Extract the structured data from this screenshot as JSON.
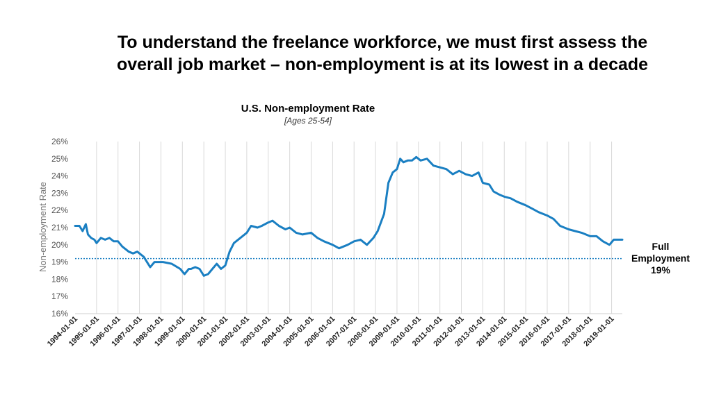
{
  "headline": {
    "line1": "To understand the freelance workforce, we must first assess the",
    "line2": "overall job market – non-employment is at its lowest in a decade"
  },
  "chart_data": {
    "type": "line",
    "title": "U.S. Non-employment Rate",
    "subtitle": "[Ages 25-54]",
    "xlabel": "",
    "ylabel": "Non-employment Rate",
    "ylim": [
      16,
      26
    ],
    "y_ticks": [
      "16%",
      "17%",
      "18%",
      "19%",
      "20%",
      "21%",
      "22%",
      "23%",
      "24%",
      "25%",
      "26%"
    ],
    "x_range": [
      1994.0,
      2019.5
    ],
    "x_ticks": [
      "1994-01-01",
      "1995-01-01",
      "1996-01-01",
      "1997-01-01",
      "1998-01-01",
      "1999-01-01",
      "2000-01-01",
      "2001-01-01",
      "2002-01-01",
      "2003-01-01",
      "2004-01-01",
      "2005-01-01",
      "2006-01-01",
      "2007-01-01",
      "2008-01-01",
      "2009-01-01",
      "2010-01-01",
      "2011-01-01",
      "2012-01-01",
      "2013-01-01",
      "2014-01-01",
      "2015-01-01",
      "2016-01-01",
      "2017-01-01",
      "2018-01-01",
      "2019-01-01"
    ],
    "grid": "vertical",
    "line_color": "#1a7fc2",
    "series": [
      {
        "x": [
          1994.0,
          1994.2,
          1994.35,
          1994.5,
          1994.6,
          1994.75,
          1994.9,
          1995.0,
          1995.2,
          1995.4,
          1995.6,
          1995.8,
          1996.0,
          1996.2,
          1996.5,
          1996.7,
          1996.9,
          1997.2,
          1997.5,
          1997.7,
          1997.9,
          1998.1,
          1998.5,
          1998.9,
          1999.1,
          1999.3,
          1999.4,
          1999.6,
          1999.8,
          2000.0,
          2000.2,
          2000.4,
          2000.6,
          2000.8,
          2001.0,
          2001.2,
          2001.4,
          2001.7,
          2002.0,
          2002.2,
          2002.5,
          2002.7,
          2003.0,
          2003.2,
          2003.5,
          2003.8,
          2004.0,
          2004.3,
          2004.6,
          2005.0,
          2005.3,
          2005.6,
          2006.0,
          2006.3,
          2006.7,
          2007.0,
          2007.3,
          2007.6,
          2007.9,
          2008.1,
          2008.4,
          2008.6,
          2008.8,
          2009.0,
          2009.15,
          2009.3,
          2009.5,
          2009.7,
          2009.9,
          2010.1,
          2010.4,
          2010.7,
          2011.0,
          2011.3,
          2011.6,
          2011.9,
          2012.2,
          2012.5,
          2012.8,
          2013.0,
          2013.3,
          2013.5,
          2013.8,
          2014.0,
          2014.3,
          2014.6,
          2015.0,
          2015.3,
          2015.6,
          2016.0,
          2016.3,
          2016.6,
          2017.0,
          2017.3,
          2017.6,
          2018.0,
          2018.3,
          2018.6,
          2018.9,
          2019.1,
          2019.3,
          2019.5
        ],
        "values": [
          21.1,
          21.1,
          20.8,
          21.2,
          20.6,
          20.4,
          20.3,
          20.1,
          20.4,
          20.3,
          20.4,
          20.2,
          20.2,
          19.9,
          19.6,
          19.5,
          19.6,
          19.3,
          18.7,
          19.0,
          19.0,
          19.0,
          18.9,
          18.6,
          18.3,
          18.6,
          18.6,
          18.7,
          18.6,
          18.2,
          18.3,
          18.6,
          18.9,
          18.6,
          18.8,
          19.6,
          20.1,
          20.4,
          20.7,
          21.1,
          21.0,
          21.1,
          21.3,
          21.4,
          21.1,
          20.9,
          21.0,
          20.7,
          20.6,
          20.7,
          20.4,
          20.2,
          20.0,
          19.8,
          20.0,
          20.2,
          20.3,
          20.0,
          20.4,
          20.8,
          21.8,
          23.6,
          24.2,
          24.4,
          25.0,
          24.8,
          24.9,
          24.9,
          25.1,
          24.9,
          25.0,
          24.6,
          24.5,
          24.4,
          24.1,
          24.3,
          24.1,
          24.0,
          24.2,
          23.6,
          23.5,
          23.1,
          22.9,
          22.8,
          22.7,
          22.5,
          22.3,
          22.1,
          21.9,
          21.7,
          21.5,
          21.1,
          20.9,
          20.8,
          20.7,
          20.5,
          20.5,
          20.2,
          20.0,
          20.3,
          20.3,
          20.3
        ]
      }
    ],
    "reference_line": {
      "value": 19.2,
      "label_line1": "Full",
      "label_line2": "Employment",
      "label_line3": "19%",
      "color": "#1a7fc2"
    }
  }
}
